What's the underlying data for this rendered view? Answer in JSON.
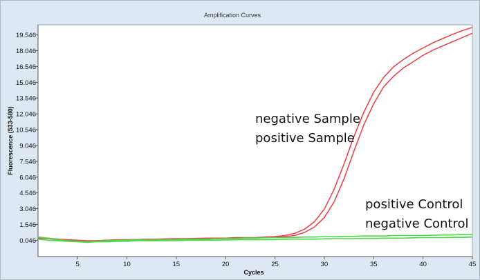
{
  "chart_data": {
    "type": "line",
    "title": "Amplification Curves",
    "xlabel": "Cycles",
    "ylabel": "Fluorescence (533-580)",
    "xlim": [
      1,
      45
    ],
    "ylim": [
      -1.5,
      20.5
    ],
    "x_ticks": [
      5,
      10,
      15,
      20,
      25,
      30,
      35,
      40,
      45
    ],
    "y_ticks": [
      0.046,
      1.546,
      3.046,
      4.546,
      6.046,
      7.546,
      9.046,
      10.546,
      12.046,
      13.546,
      15.046,
      16.546,
      18.046,
      19.546
    ],
    "y_tick_labels": [
      "0.046",
      "1.546",
      "3.046",
      "4.546",
      "6.046",
      "7.546",
      "9.046",
      "10.546",
      "12.046",
      "13.546",
      "15.046",
      "16.546",
      "18.046",
      "19.546"
    ],
    "grid": false,
    "series": [
      {
        "color": "#e8474b",
        "x": [
          1,
          2,
          3,
          4,
          5,
          6,
          7,
          8,
          9,
          10,
          11,
          12,
          13,
          14,
          15,
          16,
          17,
          18,
          19,
          20,
          21,
          22,
          23,
          24,
          25,
          26,
          27,
          28,
          29,
          30,
          31,
          32,
          33,
          34,
          35,
          36,
          37,
          38,
          39,
          40,
          41,
          42,
          43,
          44,
          45
        ],
        "y": [
          0.3,
          0.25,
          0.15,
          0.1,
          0.05,
          0.0,
          0.0,
          0.05,
          0.1,
          0.1,
          0.12,
          0.15,
          0.15,
          0.18,
          0.2,
          0.2,
          0.22,
          0.25,
          0.25,
          0.25,
          0.3,
          0.3,
          0.3,
          0.35,
          0.4,
          0.5,
          0.7,
          1.1,
          1.8,
          3.0,
          4.9,
          7.3,
          9.9,
          12.2,
          14.1,
          15.5,
          16.5,
          17.2,
          17.8,
          18.3,
          18.8,
          19.2,
          19.6,
          19.95,
          20.25
        ]
      },
      {
        "color": "#e8474b",
        "x": [
          1,
          2,
          3,
          4,
          5,
          6,
          7,
          8,
          9,
          10,
          11,
          12,
          13,
          14,
          15,
          16,
          17,
          18,
          19,
          20,
          21,
          22,
          23,
          24,
          25,
          26,
          27,
          28,
          29,
          30,
          31,
          32,
          33,
          34,
          35,
          36,
          37,
          38,
          39,
          40,
          41,
          42,
          43,
          44,
          45
        ],
        "y": [
          0.25,
          0.2,
          0.1,
          0.05,
          0.0,
          -0.05,
          0.0,
          0.05,
          0.05,
          0.08,
          0.1,
          0.1,
          0.12,
          0.15,
          0.15,
          0.15,
          0.18,
          0.2,
          0.2,
          0.22,
          0.25,
          0.25,
          0.25,
          0.3,
          0.35,
          0.4,
          0.5,
          0.8,
          1.3,
          2.2,
          3.7,
          5.9,
          8.5,
          11.0,
          13.0,
          14.6,
          15.6,
          16.4,
          17.0,
          17.6,
          18.1,
          18.5,
          18.9,
          19.3,
          19.7
        ]
      },
      {
        "color": "#4ad84a",
        "x": [
          1,
          2,
          3,
          4,
          5,
          6,
          7,
          8,
          9,
          10,
          11,
          12,
          13,
          14,
          15,
          16,
          17,
          18,
          19,
          20,
          21,
          22,
          23,
          24,
          25,
          26,
          27,
          28,
          29,
          30,
          31,
          32,
          33,
          34,
          35,
          36,
          37,
          38,
          39,
          40,
          41,
          42,
          43,
          44,
          45
        ],
        "y": [
          0.35,
          0.25,
          0.1,
          0.0,
          -0.05,
          -0.1,
          -0.05,
          0.0,
          0.05,
          0.05,
          0.1,
          0.08,
          0.1,
          0.1,
          0.12,
          0.15,
          0.15,
          0.15,
          0.18,
          0.2,
          0.2,
          0.25,
          0.25,
          0.28,
          0.3,
          0.3,
          0.32,
          0.35,
          0.35,
          0.4,
          0.4,
          0.42,
          0.42,
          0.45,
          0.45,
          0.45,
          0.5,
          0.5,
          0.5,
          0.5,
          0.52,
          0.55,
          0.55,
          0.6,
          0.6
        ]
      },
      {
        "color": "#4ad84a",
        "x": [
          1,
          2,
          3,
          4,
          5,
          6,
          7,
          8,
          9,
          10,
          11,
          12,
          13,
          14,
          15,
          16,
          17,
          18,
          19,
          20,
          21,
          22,
          23,
          24,
          25,
          26,
          27,
          28,
          29,
          30,
          31,
          32,
          33,
          34,
          35,
          36,
          37,
          38,
          39,
          40,
          41,
          42,
          43,
          44,
          45
        ],
        "y": [
          0.15,
          0.05,
          0.0,
          -0.05,
          -0.1,
          -0.15,
          -0.1,
          -0.1,
          -0.05,
          -0.05,
          0.0,
          0.0,
          0.0,
          0.0,
          0.0,
          0.05,
          0.05,
          0.05,
          0.05,
          0.08,
          0.1,
          0.1,
          0.1,
          0.1,
          0.12,
          0.15,
          0.15,
          0.15,
          0.15,
          0.18,
          0.2,
          0.2,
          0.2,
          0.22,
          0.22,
          0.25,
          0.25,
          0.25,
          0.28,
          0.3,
          0.3,
          0.3,
          0.32,
          0.32,
          0.35
        ]
      }
    ],
    "annotations": [
      {
        "text": "negative Sample"
      },
      {
        "text": "positive Sample"
      },
      {
        "text": "positive Control"
      },
      {
        "text": "negative Control"
      }
    ]
  }
}
